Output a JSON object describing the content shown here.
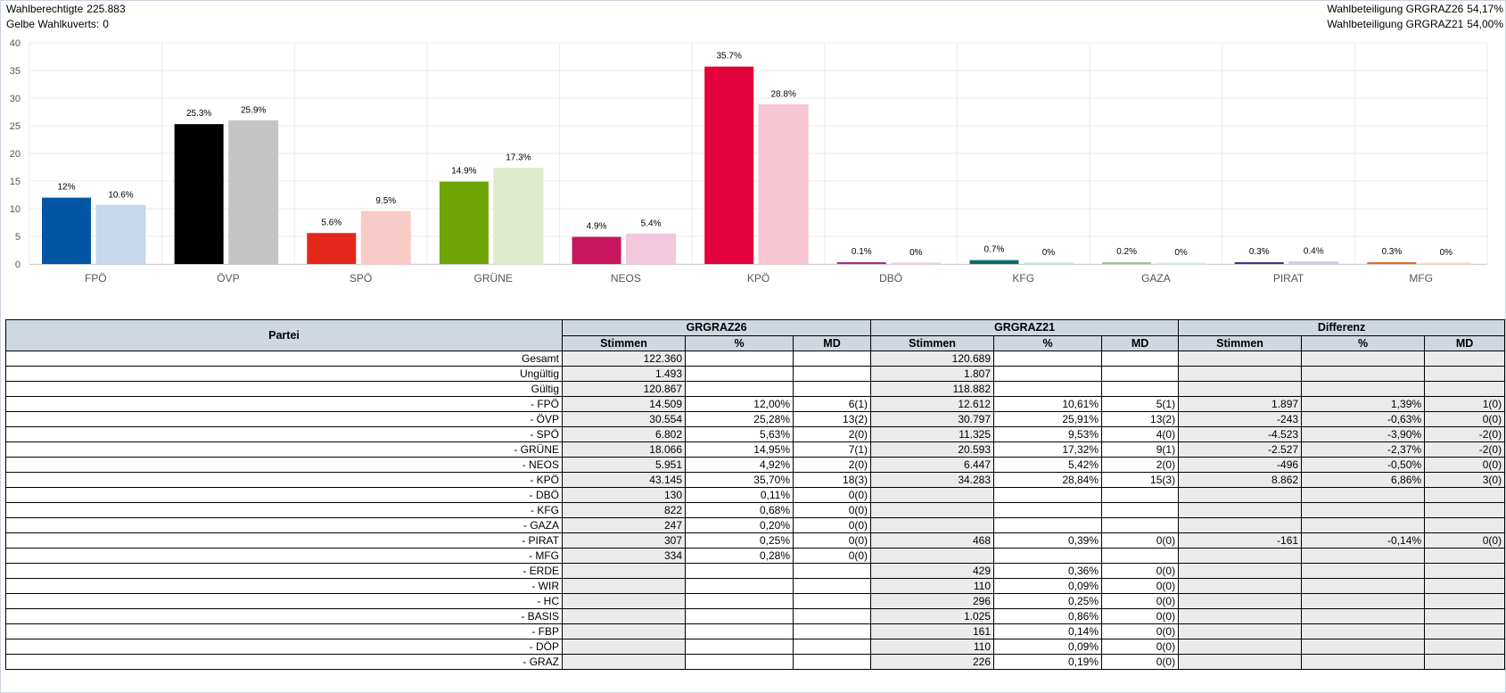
{
  "header": {
    "wahlberechtigte_label": "Wahlberechtigte",
    "wahlberechtigte_value": "225.883",
    "kuverts_label": "Gelbe Wahlkuverts:",
    "kuverts_value": "0",
    "beteiligung26_label": "Wahlbeteiligung GRGRAZ26",
    "beteiligung26_value": "54,17%",
    "beteiligung21_label": "Wahlbeteiligung GRGRAZ21",
    "beteiligung21_value": "54,00%"
  },
  "chart_data": {
    "type": "bar",
    "ylim": [
      0,
      40
    ],
    "yticks": [
      0,
      5,
      10,
      15,
      20,
      25,
      30,
      35,
      40
    ],
    "grid": true,
    "categories": [
      "FPÖ",
      "ÖVP",
      "SPÖ",
      "GRÜNE",
      "NEOS",
      "KPÖ",
      "DBÖ",
      "KFG",
      "GAZA",
      "PIRAT",
      "MFG"
    ],
    "series": [
      {
        "values": [
          12,
          25.3,
          5.6,
          14.9,
          4.9,
          35.7,
          0.1,
          0.7,
          0.2,
          0.3,
          0.3
        ],
        "labels": [
          "12%",
          "25.3%",
          "5.6%",
          "14.9%",
          "4.9%",
          "35.7%",
          "0.1%",
          "0.7%",
          "0.2%",
          "0.3%",
          "0.3%"
        ],
        "colors": [
          "#0056a4",
          "#000000",
          "#e3281b",
          "#6ea404",
          "#c8175e",
          "#e4003a",
          "#a82c8d",
          "#0e6b6b",
          "#8fc99a",
          "#4b2a8a",
          "#f26522"
        ]
      },
      {
        "values": [
          10.6,
          25.9,
          9.5,
          17.3,
          5.4,
          28.8,
          0,
          0,
          0,
          0.4,
          0
        ],
        "labels": [
          "10.6%",
          "25.9%",
          "9.5%",
          "17.3%",
          "5.4%",
          "28.8%",
          "0%",
          "0%",
          "0%",
          "0.4%",
          "0%"
        ],
        "colors": [
          "#c5d8ec",
          "#c5c5c5",
          "#f8cbc6",
          "#dfeacb",
          "#f1c8dc",
          "#f8c5d3",
          "#ead1e6",
          "#c9e0e0",
          "#d8eedd",
          "#d6cce6",
          "#fcd6c3"
        ]
      }
    ]
  },
  "table": {
    "partei_header": "Partei",
    "groups": [
      "GRGRAZ26",
      "GRGRAZ21",
      "Differenz"
    ],
    "subheaders": [
      "Stimmen",
      "%",
      "MD"
    ],
    "rows": [
      {
        "name": "Gesamt",
        "c": [
          "122.360",
          "",
          "",
          "120.689",
          "",
          "",
          "",
          "",
          ""
        ]
      },
      {
        "name": "Ungültig",
        "c": [
          "1.493",
          "",
          "",
          "1.807",
          "",
          "",
          "",
          "",
          ""
        ]
      },
      {
        "name": "Gültig",
        "c": [
          "120.867",
          "",
          "",
          "118.882",
          "",
          "",
          "",
          "",
          ""
        ]
      },
      {
        "name": "- FPÖ",
        "c": [
          "14.509",
          "12,00%",
          "6(1)",
          "12.612",
          "10,61%",
          "5(1)",
          "1.897",
          "1,39%",
          "1(0)"
        ]
      },
      {
        "name": "- ÖVP",
        "c": [
          "30.554",
          "25,28%",
          "13(2)",
          "30.797",
          "25,91%",
          "13(2)",
          "-243",
          "-0,63%",
          "0(0)"
        ]
      },
      {
        "name": "- SPÖ",
        "c": [
          "6.802",
          "5,63%",
          "2(0)",
          "11.325",
          "9,53%",
          "4(0)",
          "-4.523",
          "-3,90%",
          "-2(0)"
        ]
      },
      {
        "name": "- GRÜNE",
        "c": [
          "18.066",
          "14,95%",
          "7(1)",
          "20.593",
          "17,32%",
          "9(1)",
          "-2.527",
          "-2,37%",
          "-2(0)"
        ]
      },
      {
        "name": "- NEOS",
        "c": [
          "5.951",
          "4,92%",
          "2(0)",
          "6.447",
          "5,42%",
          "2(0)",
          "-496",
          "-0,50%",
          "0(0)"
        ]
      },
      {
        "name": "- KPÖ",
        "c": [
          "43.145",
          "35,70%",
          "18(3)",
          "34.283",
          "28,84%",
          "15(3)",
          "8.862",
          "6,86%",
          "3(0)"
        ]
      },
      {
        "name": "- DBÖ",
        "c": [
          "130",
          "0,11%",
          "0(0)",
          "",
          "",
          "",
          "",
          "",
          ""
        ]
      },
      {
        "name": "- KFG",
        "c": [
          "822",
          "0,68%",
          "0(0)",
          "",
          "",
          "",
          "",
          "",
          ""
        ]
      },
      {
        "name": "- GAZA",
        "c": [
          "247",
          "0,20%",
          "0(0)",
          "",
          "",
          "",
          "",
          "",
          ""
        ]
      },
      {
        "name": "- PIRAT",
        "c": [
          "307",
          "0,25%",
          "0(0)",
          "468",
          "0,39%",
          "0(0)",
          "-161",
          "-0,14%",
          "0(0)"
        ]
      },
      {
        "name": "- MFG",
        "c": [
          "334",
          "0,28%",
          "0(0)",
          "",
          "",
          "",
          "",
          "",
          ""
        ]
      },
      {
        "name": "- ERDE",
        "c": [
          "",
          "",
          "",
          "429",
          "0,36%",
          "0(0)",
          "",
          "",
          ""
        ]
      },
      {
        "name": "- WIR",
        "c": [
          "",
          "",
          "",
          "110",
          "0,09%",
          "0(0)",
          "",
          "",
          ""
        ]
      },
      {
        "name": "- HC",
        "c": [
          "",
          "",
          "",
          "296",
          "0,25%",
          "0(0)",
          "",
          "",
          ""
        ]
      },
      {
        "name": "- BASIS",
        "c": [
          "",
          "",
          "",
          "1.025",
          "0,86%",
          "0(0)",
          "",
          "",
          ""
        ]
      },
      {
        "name": "- FBP",
        "c": [
          "",
          "",
          "",
          "161",
          "0,14%",
          "0(0)",
          "",
          "",
          ""
        ]
      },
      {
        "name": "- DÖP",
        "c": [
          "",
          "",
          "",
          "110",
          "0,09%",
          "0(0)",
          "",
          "",
          ""
        ]
      },
      {
        "name": "- GRAZ",
        "c": [
          "",
          "",
          "",
          "226",
          "0,19%",
          "0(0)",
          "",
          "",
          ""
        ]
      }
    ]
  }
}
